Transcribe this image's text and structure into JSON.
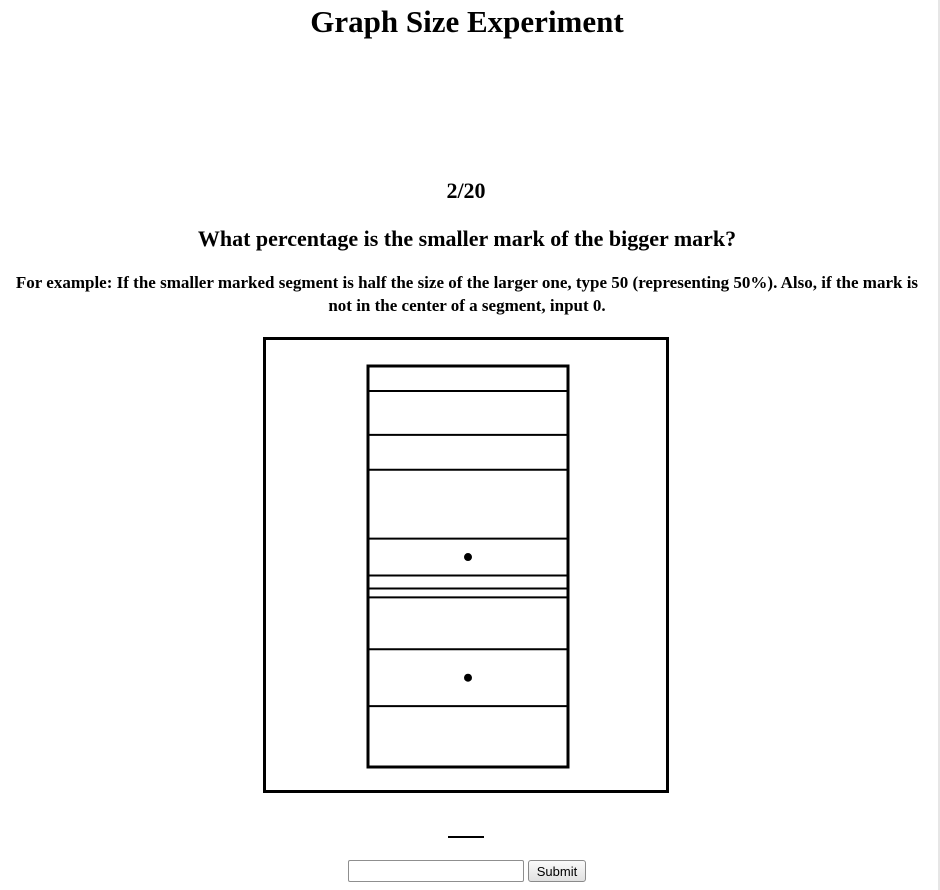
{
  "page": {
    "title": "Graph Size Experiment",
    "progress": "2/20",
    "question": "What percentage is the smaller mark of the bigger mark?",
    "instructions": "For example: If the smaller marked segment is half the size of the larger one, type 50 (representing 50%). Also, if the mark is not in the center of a segment, input 0."
  },
  "stacked_bar": {
    "type": "stacked-bar",
    "segments": [
      {
        "size": 25,
        "marked": false
      },
      {
        "size": 44,
        "marked": false
      },
      {
        "size": 35,
        "marked": false
      },
      {
        "size": 69,
        "marked": false
      },
      {
        "size": 37,
        "marked": true
      },
      {
        "size": 13,
        "marked": false
      },
      {
        "size": 9,
        "marked": false
      },
      {
        "size": 52,
        "marked": false
      },
      {
        "size": 57,
        "marked": true
      },
      {
        "size": 61,
        "marked": false
      }
    ]
  },
  "form": {
    "answer_value": "",
    "answer_placeholder": "",
    "submit_label": "Submit"
  }
}
